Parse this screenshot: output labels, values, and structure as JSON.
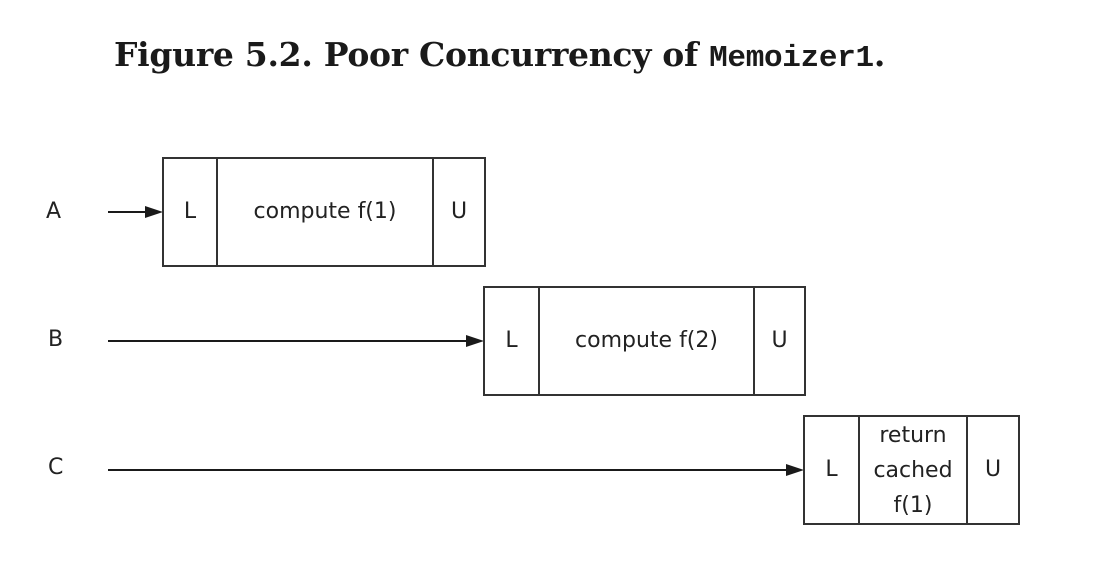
{
  "caption": {
    "prefix": "Figure 5.2. Poor Concurrency of ",
    "code": "Memoizer1",
    "suffix": "."
  },
  "threads": [
    {
      "label": "A",
      "lock": "L",
      "work": "compute f(1)",
      "unlock": "U"
    },
    {
      "label": "B",
      "lock": "L",
      "work": "compute f(2)",
      "unlock": "U"
    },
    {
      "label": "C",
      "lock": "L",
      "work_lines": [
        "return",
        "cached",
        "f(1)"
      ],
      "unlock": "U"
    }
  ]
}
